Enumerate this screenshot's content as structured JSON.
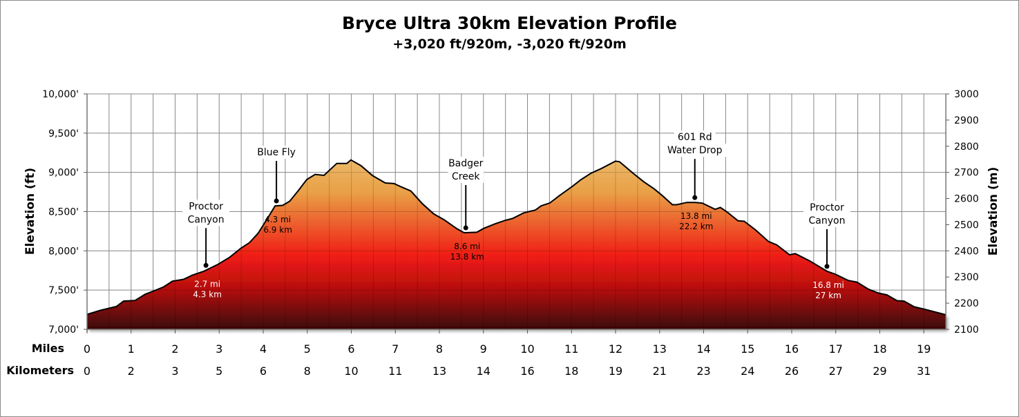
{
  "chart_data": {
    "type": "area",
    "title": "Bryce Ultra 30km Elevation Profile",
    "subtitle": "+3,020 ft/920m, -3,020 ft/920m",
    "ylabel": "Elevation (ft)",
    "ylabel_right": "Elevation (m)",
    "xlabel_miles": "Miles",
    "xlabel_km": "Kilometers",
    "ylim": [
      7000,
      10000
    ],
    "ylim_right": [
      2100,
      3000
    ],
    "xlim": [
      0,
      19.5
    ],
    "grid": true,
    "y_ticks": [
      {
        "value": 7000,
        "label": "7,000'"
      },
      {
        "value": 7500,
        "label": "7,500'"
      },
      {
        "value": 8000,
        "label": "8,000'"
      },
      {
        "value": 8500,
        "label": "8,500'"
      },
      {
        "value": 9000,
        "label": "9,000'"
      },
      {
        "value": 9500,
        "label": "9,500'"
      },
      {
        "value": 10000,
        "label": "10,000'"
      }
    ],
    "y_ticks_right": [
      "2100",
      "2200",
      "2300",
      "2400",
      "2500",
      "2600",
      "2700",
      "2800",
      "2900",
      "3000"
    ],
    "x_ticks_miles": [
      "0",
      "1",
      "2",
      "3",
      "4",
      "5",
      "6",
      "7",
      "8",
      "9",
      "10",
      "11",
      "12",
      "13",
      "14",
      "15",
      "16",
      "17",
      "18",
      "19"
    ],
    "x_ticks_km": [
      "0",
      "2",
      "3",
      "5",
      "6",
      "8",
      "10",
      "11",
      "13",
      "14",
      "16",
      "18",
      "19",
      "21",
      "23",
      "24",
      "26",
      "27",
      "29",
      "31"
    ],
    "fill_colors": [
      "#f0e4a8",
      "#e9a046",
      "#f01c14",
      "#b80f0f",
      "#3a0606"
    ],
    "profile": {
      "x": [
        0,
        0.31,
        0.67,
        0.83,
        1.09,
        1.32,
        1.55,
        1.74,
        1.94,
        2.19,
        2.39,
        2.65,
        2.78,
        2.97,
        3.23,
        3.49,
        3.69,
        3.88,
        4.08,
        4.27,
        4.44,
        4.6,
        4.79,
        4.99,
        5.18,
        5.38,
        5.67,
        5.9,
        5.99,
        6.22,
        6.48,
        6.77,
        6.97,
        7.13,
        7.35,
        7.61,
        7.87,
        8.1,
        8.4,
        8.56,
        8.85,
        9.01,
        9.27,
        9.5,
        9.66,
        9.92,
        10.18,
        10.31,
        10.51,
        10.73,
        11.02,
        11.22,
        11.44,
        11.67,
        12.0,
        12.09,
        12.38,
        12.64,
        12.87,
        13.06,
        13.29,
        13.39,
        13.62,
        13.81,
        13.97,
        14.26,
        14.38,
        14.52,
        14.78,
        14.92,
        15.18,
        15.47,
        15.66,
        15.95,
        16.08,
        16.41,
        16.8,
        16.99,
        17.28,
        17.48,
        17.74,
        17.97,
        18.16,
        18.39,
        18.55,
        18.78,
        19.01,
        19.45,
        19.5
      ],
      "y": [
        7190,
        7244,
        7292,
        7360,
        7368,
        7447,
        7497,
        7541,
        7614,
        7637,
        7690,
        7740,
        7775,
        7827,
        7915,
        8032,
        8105,
        8222,
        8398,
        8573,
        8579,
        8632,
        8763,
        8909,
        8974,
        8962,
        9114,
        9114,
        9158,
        9085,
        8959,
        8865,
        8857,
        8816,
        8763,
        8602,
        8471,
        8398,
        8281,
        8231,
        8237,
        8287,
        8345,
        8389,
        8412,
        8485,
        8520,
        8573,
        8611,
        8705,
        8822,
        8909,
        8988,
        9047,
        9143,
        9135,
        8997,
        8880,
        8792,
        8705,
        8588,
        8588,
        8617,
        8617,
        8608,
        8529,
        8553,
        8500,
        8383,
        8377,
        8266,
        8120,
        8076,
        7950,
        7965,
        7871,
        7740,
        7702,
        7623,
        7602,
        7512,
        7462,
        7439,
        7365,
        7360,
        7287,
        7257,
        7193,
        7185
      ]
    },
    "annotations": [
      {
        "name_lines": [
          "Proctor",
          "Canyon"
        ],
        "mile": 2.7,
        "mi_label": "2.7 mi",
        "km_label": "4.3 km",
        "label_color": "#ffffff"
      },
      {
        "name_lines": [
          "Blue Fly"
        ],
        "mile": 4.3,
        "mi_label": "4.3 mi",
        "km_label": "6.9 km",
        "label_color": "#000000"
      },
      {
        "name_lines": [
          "Badger",
          "Creek"
        ],
        "mile": 8.6,
        "mi_label": "8.6 mi",
        "km_label": "13.8 km",
        "label_color": "#000000"
      },
      {
        "name_lines": [
          "601 Rd",
          "Water Drop"
        ],
        "mile": 13.8,
        "mi_label": "13.8 mi",
        "km_label": "22.2 km",
        "label_color": "#000000"
      },
      {
        "name_lines": [
          "Proctor",
          "Canyon"
        ],
        "mile": 16.8,
        "mi_label": "16.8 mi",
        "km_label": "27 km",
        "label_color": "#ffffff"
      }
    ]
  }
}
